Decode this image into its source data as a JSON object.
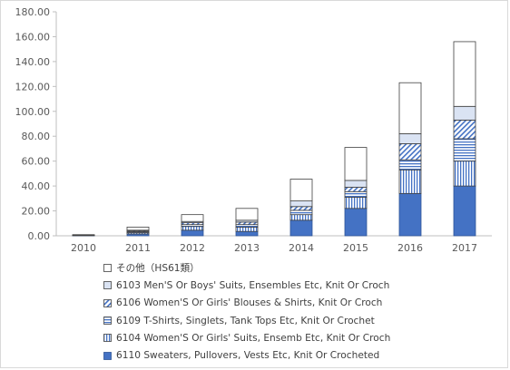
{
  "chart_data": {
    "type": "bar",
    "stacked": true,
    "title": "",
    "xlabel": "",
    "ylabel": "",
    "ylim": [
      0,
      180
    ],
    "yticks": [
      "0.00",
      "20.00",
      "40.00",
      "60.00",
      "80.00",
      "100.00",
      "120.00",
      "140.00",
      "160.00",
      "180.00"
    ],
    "grid": false,
    "legend_position": "bottom",
    "categories": [
      "2010",
      "2011",
      "2012",
      "2013",
      "2014",
      "2015",
      "2016",
      "2017"
    ],
    "series": [
      {
        "name": "6110 Sweaters, Pullovers, Vests Etc, Knit Or Crocheted",
        "pattern": "solid",
        "color": "#4472c4",
        "values": [
          0.1,
          1.5,
          4.5,
          3.5,
          12.5,
          22.0,
          34.0,
          40.0
        ]
      },
      {
        "name": "6104 Women'S Or Girls' Suits, Ensemb Etc, Knit Or Croch",
        "pattern": "vertical",
        "color": "#4472c4",
        "values": [
          0.1,
          1.0,
          3.0,
          3.5,
          4.5,
          9.0,
          19.0,
          20.0
        ]
      },
      {
        "name": "6109 T-Shirts, Singlets, Tank Tops Etc, Knit Or Crochet",
        "pattern": "horizontal",
        "color": "#4472c4",
        "values": [
          0.1,
          0.8,
          1.5,
          2.0,
          3.5,
          4.5,
          8.0,
          18.0
        ]
      },
      {
        "name": "6106 Women'S Or Girls' Blouses & Shirts, Knit Or Croch",
        "pattern": "diagonal",
        "color": "#4472c4",
        "values": [
          0.1,
          0.8,
          1.5,
          2.0,
          3.0,
          3.5,
          13.0,
          15.0
        ]
      },
      {
        "name": "6103 Men'S Or Boys' Suits, Ensembles Etc, Knit Or Croch",
        "pattern": "light",
        "color": "#dae3f3",
        "values": [
          0.1,
          0.4,
          1.0,
          1.5,
          4.5,
          5.5,
          8.0,
          11.0
        ]
      },
      {
        "name": "その他（HS61類）",
        "pattern": "white",
        "color": "#ffffff",
        "values": [
          0.4,
          2.5,
          5.5,
          9.5,
          17.5,
          26.5,
          41.0,
          52.0
        ]
      }
    ],
    "legend_order": [
      5,
      4,
      3,
      2,
      1,
      0
    ]
  }
}
